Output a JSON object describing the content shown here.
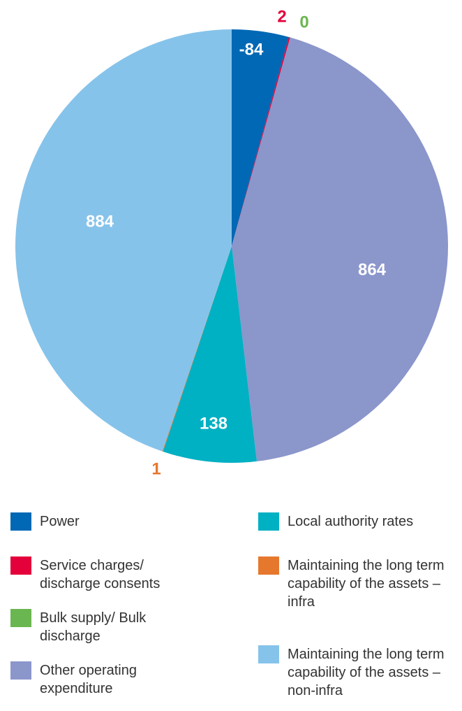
{
  "chart_data": {
    "type": "pie",
    "categories": [
      "Power",
      "Service charges/ discharge consents",
      "Bulk supply/ Bulk discharge",
      "Other operating expenditure",
      "Local authority rates",
      "Maintaining the long term capability of the assets – infra",
      "Maintaining the long term capability of the assets – non-infra"
    ],
    "values": [
      -84,
      2,
      0,
      864,
      138,
      1,
      884
    ],
    "colors": [
      "#0068b4",
      "#e4003b",
      "#6ab650",
      "#8b96cb",
      "#00b0c3",
      "#e6782d",
      "#86c3ea"
    ],
    "legend": "bottom"
  }
}
